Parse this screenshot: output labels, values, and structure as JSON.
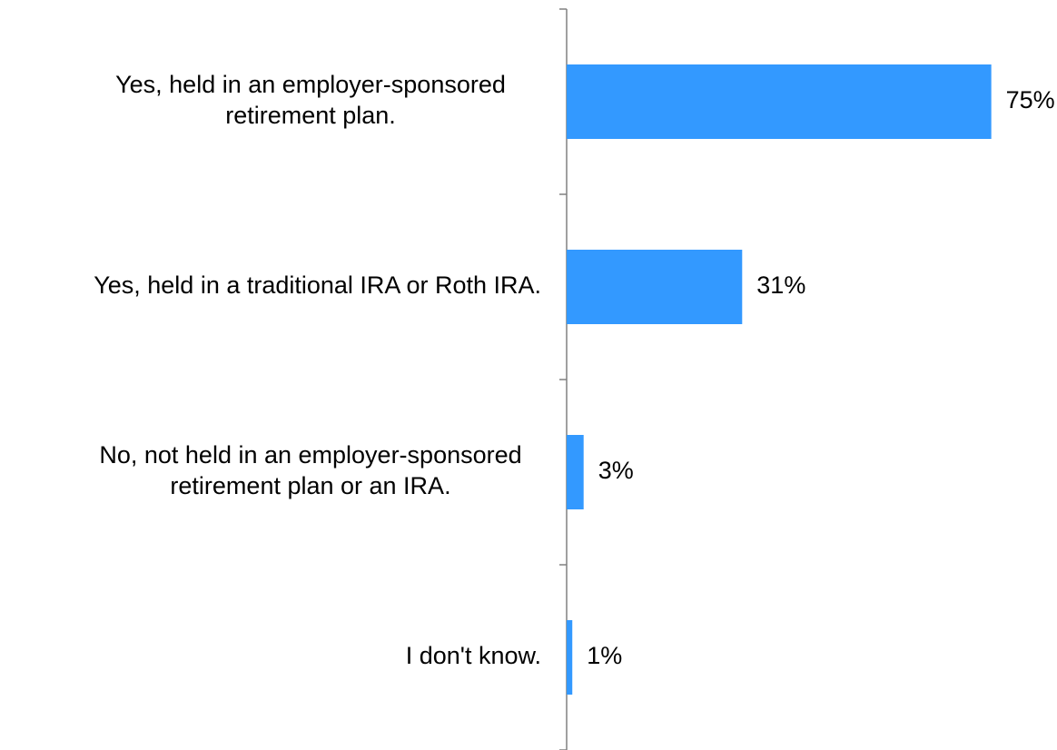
{
  "chart_data": {
    "type": "bar",
    "orientation": "horizontal",
    "categories": [
      [
        "Yes, held in an employer-sponsored",
        "retirement plan."
      ],
      [
        "Yes, held in a traditional IRA or Roth IRA."
      ],
      [
        "No, not held in an employer-sponsored",
        "retirement plan or an IRA."
      ],
      [
        "I don't know."
      ]
    ],
    "values": [
      75,
      31,
      3,
      1
    ],
    "value_labels": [
      "75%",
      "31%",
      "3%",
      "1%"
    ],
    "xlim": [
      0,
      85
    ],
    "bar_color": "#3399FF",
    "axis_color": "#808080",
    "grid": false,
    "legend": "none"
  }
}
